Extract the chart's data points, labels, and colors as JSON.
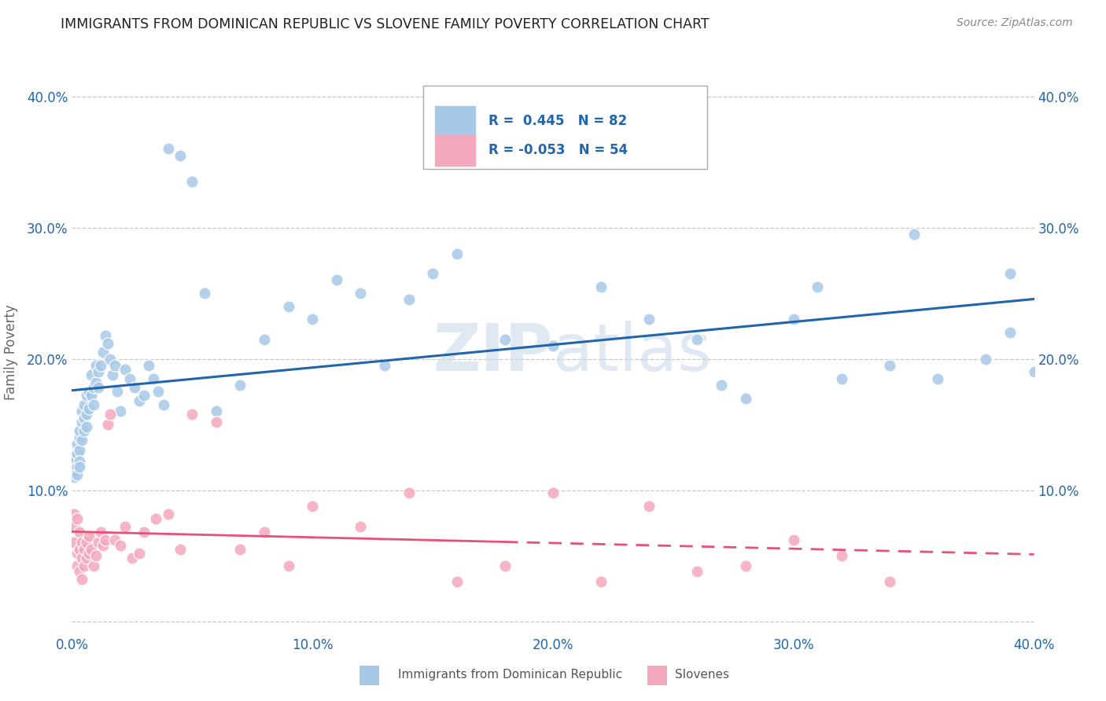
{
  "title": "IMMIGRANTS FROM DOMINICAN REPUBLIC VS SLOVENE FAMILY POVERTY CORRELATION CHART",
  "source": "Source: ZipAtlas.com",
  "ylabel": "Family Poverty",
  "legend_label1": "Immigrants from Dominican Republic",
  "legend_label2": "Slovenes",
  "r1": 0.445,
  "n1": 82,
  "r2": -0.053,
  "n2": 54,
  "blue_color": "#a8c8e8",
  "pink_color": "#f4a8be",
  "blue_line_color": "#2166ac",
  "pink_line_color": "#e8507a",
  "background_color": "#ffffff",
  "grid_color": "#c8c8c8",
  "title_color": "#222222",
  "tick_color": "#2166ac",
  "ylabel_color": "#666666",
  "watermark_color": "#c8d8e8",
  "blue_scatter_x": [
    0.001,
    0.001,
    0.001,
    0.001,
    0.002,
    0.002,
    0.002,
    0.002,
    0.003,
    0.003,
    0.003,
    0.003,
    0.003,
    0.004,
    0.004,
    0.004,
    0.005,
    0.005,
    0.005,
    0.006,
    0.006,
    0.006,
    0.007,
    0.007,
    0.008,
    0.008,
    0.009,
    0.009,
    0.01,
    0.01,
    0.011,
    0.011,
    0.012,
    0.013,
    0.014,
    0.015,
    0.016,
    0.017,
    0.018,
    0.019,
    0.02,
    0.022,
    0.024,
    0.026,
    0.028,
    0.03,
    0.032,
    0.034,
    0.036,
    0.038,
    0.04,
    0.045,
    0.05,
    0.055,
    0.06,
    0.07,
    0.08,
    0.09,
    0.1,
    0.11,
    0.12,
    0.13,
    0.14,
    0.15,
    0.16,
    0.18,
    0.2,
    0.22,
    0.24,
    0.26,
    0.28,
    0.3,
    0.32,
    0.34,
    0.36,
    0.38,
    0.39,
    0.4,
    0.27,
    0.31,
    0.35,
    0.39
  ],
  "blue_scatter_y": [
    0.115,
    0.12,
    0.125,
    0.11,
    0.128,
    0.135,
    0.118,
    0.112,
    0.14,
    0.13,
    0.145,
    0.122,
    0.118,
    0.152,
    0.138,
    0.16,
    0.165,
    0.145,
    0.155,
    0.172,
    0.158,
    0.148,
    0.175,
    0.162,
    0.188,
    0.172,
    0.178,
    0.165,
    0.195,
    0.182,
    0.19,
    0.178,
    0.195,
    0.205,
    0.218,
    0.212,
    0.2,
    0.188,
    0.195,
    0.175,
    0.16,
    0.192,
    0.185,
    0.178,
    0.168,
    0.172,
    0.195,
    0.185,
    0.175,
    0.165,
    0.36,
    0.355,
    0.335,
    0.25,
    0.16,
    0.18,
    0.215,
    0.24,
    0.23,
    0.26,
    0.25,
    0.195,
    0.245,
    0.265,
    0.28,
    0.215,
    0.21,
    0.255,
    0.23,
    0.215,
    0.17,
    0.23,
    0.185,
    0.195,
    0.185,
    0.2,
    0.265,
    0.19,
    0.18,
    0.255,
    0.295,
    0.22
  ],
  "pink_scatter_x": [
    0.001,
    0.001,
    0.001,
    0.002,
    0.002,
    0.002,
    0.003,
    0.003,
    0.003,
    0.004,
    0.004,
    0.004,
    0.005,
    0.005,
    0.006,
    0.006,
    0.007,
    0.007,
    0.008,
    0.009,
    0.01,
    0.011,
    0.012,
    0.013,
    0.014,
    0.015,
    0.016,
    0.018,
    0.02,
    0.022,
    0.025,
    0.028,
    0.03,
    0.035,
    0.04,
    0.045,
    0.05,
    0.06,
    0.07,
    0.08,
    0.09,
    0.1,
    0.12,
    0.14,
    0.16,
    0.18,
    0.2,
    0.22,
    0.24,
    0.26,
    0.28,
    0.3,
    0.32,
    0.34
  ],
  "pink_scatter_y": [
    0.082,
    0.072,
    0.06,
    0.078,
    0.052,
    0.042,
    0.068,
    0.055,
    0.038,
    0.06,
    0.048,
    0.032,
    0.055,
    0.042,
    0.06,
    0.048,
    0.065,
    0.052,
    0.055,
    0.042,
    0.05,
    0.06,
    0.068,
    0.058,
    0.062,
    0.15,
    0.158,
    0.062,
    0.058,
    0.072,
    0.048,
    0.052,
    0.068,
    0.078,
    0.082,
    0.055,
    0.158,
    0.152,
    0.055,
    0.068,
    0.042,
    0.088,
    0.072,
    0.098,
    0.03,
    0.042,
    0.098,
    0.03,
    0.088,
    0.038,
    0.042,
    0.062,
    0.05,
    0.03
  ],
  "xlim": [
    0.0,
    0.4
  ],
  "ylim": [
    -0.01,
    0.42
  ],
  "xtick_positions": [
    0.0,
    0.1,
    0.2,
    0.3,
    0.4
  ],
  "xtick_labels": [
    "0.0%",
    "10.0%",
    "20.0%",
    "30.0%",
    "40.0%"
  ],
  "ytick_positions": [
    0.0,
    0.1,
    0.2,
    0.3,
    0.4
  ],
  "ytick_labels": [
    "",
    "10.0%",
    "20.0%",
    "30.0%",
    "40.0%"
  ]
}
